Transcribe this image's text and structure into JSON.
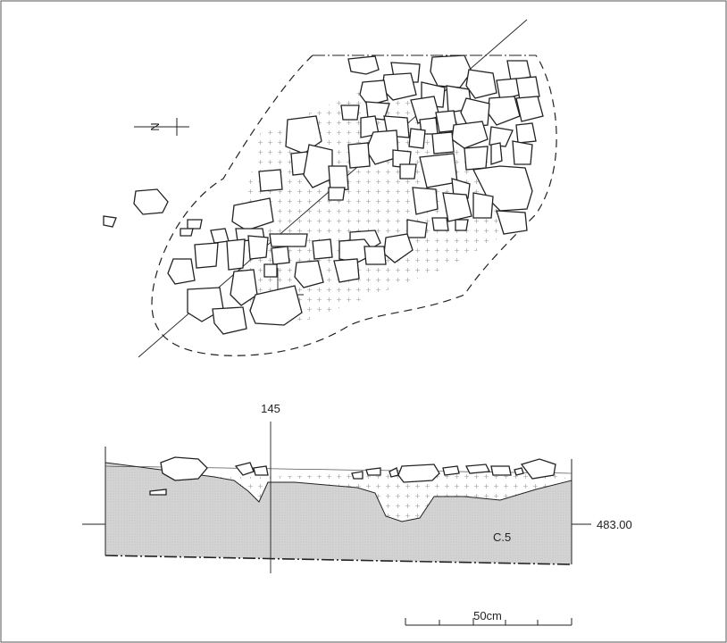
{
  "plan": {
    "north_label": "N"
  },
  "section": {
    "profile_label": "145",
    "elevation_label": "483.00",
    "layer_label": "C.5"
  },
  "scale_bar": {
    "label": "50cm"
  },
  "colors": {
    "ink": "#222222",
    "fill_gray": "#d6d6d6",
    "cross_hatch": "#9a9a9a"
  }
}
